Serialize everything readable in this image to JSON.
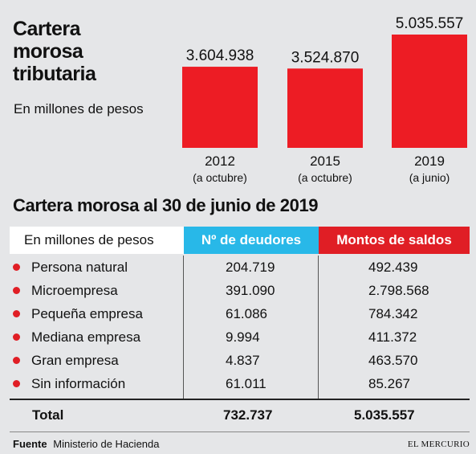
{
  "header": {
    "title": "Cartera\nmorosa\ntributaria",
    "subtitle": "En millones de pesos"
  },
  "chart_data": {
    "type": "bar",
    "categories": [
      "2012",
      "2015",
      "2019"
    ],
    "category_notes": [
      "(a octubre)",
      "(a octubre)",
      "(a junio)"
    ],
    "values": [
      3604938,
      3524870,
      5035557
    ],
    "value_labels": [
      "3.604.938",
      "3.524.870",
      "5.035.557"
    ],
    "ylim": [
      0,
      5035557
    ],
    "bar_color": "#ed1c24",
    "grid": false
  },
  "section_title": "Cartera morosa al 30 de junio de 2019",
  "table": {
    "header": {
      "label": "En millones de pesos",
      "col1": "Nº de deudores",
      "col2": "Montos de saldos"
    },
    "header_colors": {
      "col1": "#28b8e8",
      "col2": "#e01e25"
    },
    "rows": [
      {
        "name": "Persona natural",
        "deudores": "204.719",
        "saldos": "492.439"
      },
      {
        "name": "Microempresa",
        "deudores": "391.090",
        "saldos": "2.798.568"
      },
      {
        "name": "Pequeña empresa",
        "deudores": "61.086",
        "saldos": "784.342"
      },
      {
        "name": "Mediana empresa",
        "deudores": "9.994",
        "saldos": "411.372"
      },
      {
        "name": "Gran empresa",
        "deudores": "4.837",
        "saldos": "463.570"
      },
      {
        "name": "Sin información",
        "deudores": "61.011",
        "saldos": "85.267"
      }
    ],
    "total": {
      "label": "Total",
      "deudores": "732.737",
      "saldos": "5.035.557"
    }
  },
  "footer": {
    "source_label": "Fuente",
    "source": "Ministerio de Hacienda",
    "brand": "EL MERCURIO"
  }
}
